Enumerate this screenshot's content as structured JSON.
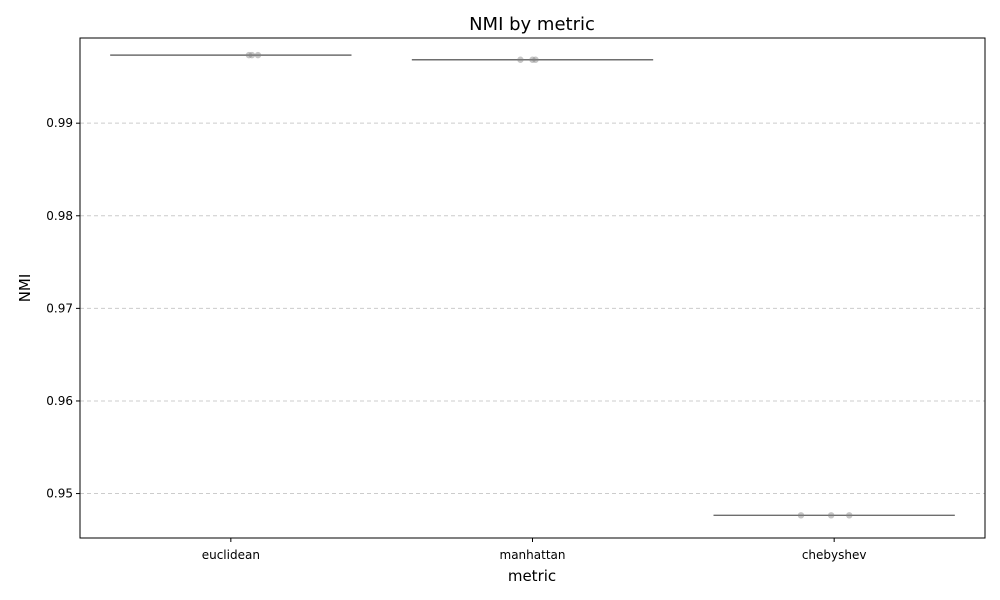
{
  "chart_data": {
    "type": "box",
    "title": "NMI by metric",
    "xlabel": "metric",
    "ylabel": "NMI",
    "categories": [
      "euclidean",
      "manhattan",
      "chebyshev"
    ],
    "ylim": [
      0.9452,
      0.9992
    ],
    "yticks": [
      0.95,
      0.96,
      0.97,
      0.98,
      0.99
    ],
    "ytick_labels": [
      "0.95",
      "0.96",
      "0.97",
      "0.98",
      "0.99"
    ],
    "grid": "horizontal dashed",
    "boxes": [
      {
        "category": "euclidean",
        "median": 0.99735
      },
      {
        "category": "manhattan",
        "median": 0.99685
      },
      {
        "category": "chebyshev",
        "median": 0.94765
      }
    ],
    "points": [
      {
        "category": "euclidean",
        "offset": 0.06,
        "y": 0.99735
      },
      {
        "category": "euclidean",
        "offset": 0.07,
        "y": 0.99735
      },
      {
        "category": "euclidean",
        "offset": 0.09,
        "y": 0.99735
      },
      {
        "category": "manhattan",
        "offset": -0.04,
        "y": 0.99685
      },
      {
        "category": "manhattan",
        "offset": 0.0,
        "y": 0.99685
      },
      {
        "category": "manhattan",
        "offset": 0.01,
        "y": 0.99685
      },
      {
        "category": "chebyshev",
        "offset": -0.11,
        "y": 0.94765
      },
      {
        "category": "chebyshev",
        "offset": -0.01,
        "y": 0.94765
      },
      {
        "category": "chebyshev",
        "offset": 0.05,
        "y": 0.94765
      }
    ],
    "colors": {
      "box": "#6e6e6e",
      "point": "#808080",
      "grid": "#cccccc"
    }
  }
}
